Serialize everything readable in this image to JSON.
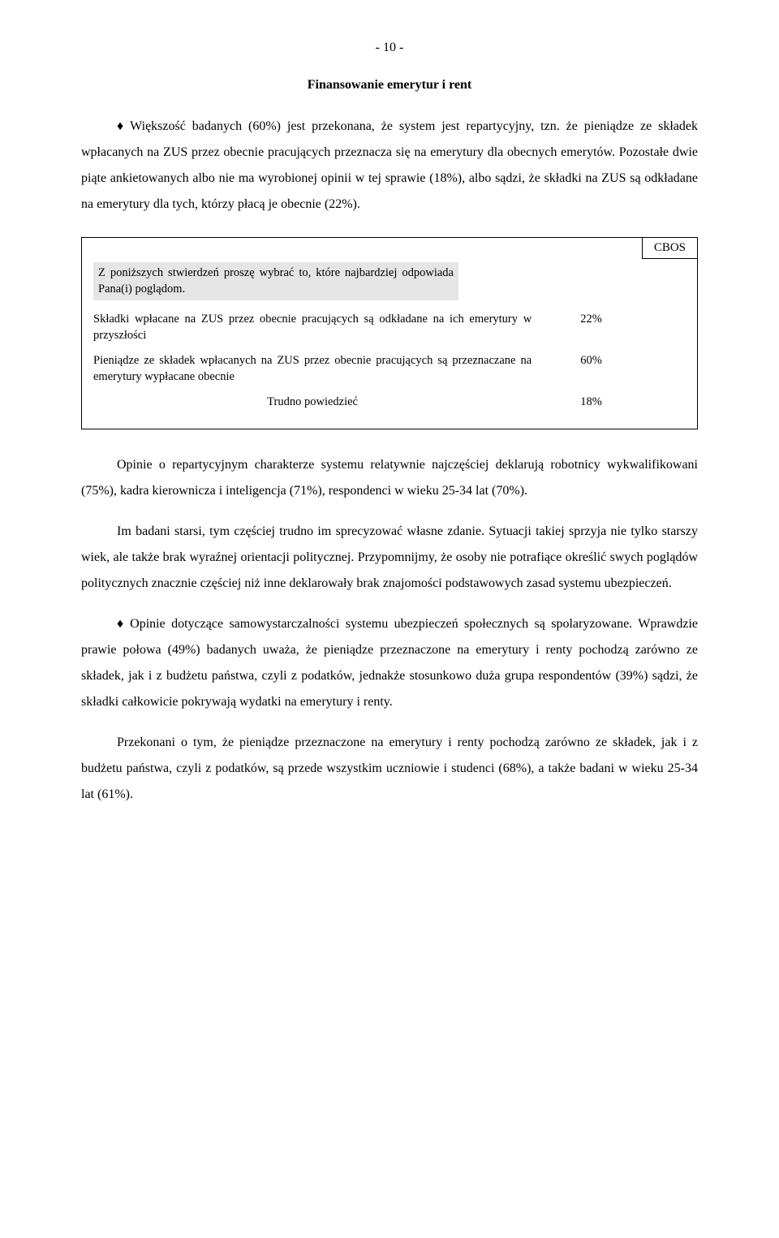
{
  "page_number": "- 10 -",
  "section_title": "Finansowanie emerytur i rent",
  "paragraphs": {
    "p1": "Większość badanych (60%) jest przekonana, że system jest repartycyjny, tzn. że pieniądze ze składek wpłacanych na ZUS przez obecnie pracujących przeznacza się na emerytury dla obecnych emerytów. Pozostałe dwie piąte ankietowanych albo nie ma wyrobionej opinii w tej sprawie (18%), albo sądzi, że składki na ZUS są odkładane na emerytury dla tych, którzy płacą je obecnie (22%).",
    "p2": "Opinie o repartycyjnym charakterze systemu relatywnie najczęściej deklarują robotnicy wykwalifikowani (75%), kadra kierownicza i inteligencja (71%), respondenci w wieku 25-34 lat (70%).",
    "p3": "Im badani starsi, tym częściej trudno im sprecyzować własne zdanie. Sytuacji takiej sprzyja nie tylko starszy wiek, ale także brak wyraźnej orientacji politycznej. Przypomnijmy, że osoby nie potrafiące określić swych poglądów politycznych znacznie częściej niż inne deklarowały brak znajomości podstawowych zasad systemu ubezpieczeń.",
    "p4": "Opinie dotyczące samowystarczalności systemu ubezpieczeń społecznych są spolaryzowane. Wprawdzie prawie połowa (49%) badanych uważa, że pieniądze przeznaczone na emerytury i renty pochodzą zarówno ze składek, jak i z budżetu państwa, czyli z podatków, jednakże stosunkowo duża grupa respondentów (39%)  sądzi, że składki całkowicie pokrywają wydatki na emerytury i renty.",
    "p5": "Przekonani o tym, że pieniądze przeznaczone na emerytury i renty pochodzą zarówno ze składek, jak i z budżetu państwa, czyli z podatków, są przede wszystkim uczniowie i studenci (68%), a także badani w wieku 25-34 lat (61%)."
  },
  "survey": {
    "tag": "CBOS",
    "question": "Z poniższych stwierdzeń proszę wybrać to, które najbardziej odpowiada Pana(i) poglądom.",
    "answers": [
      {
        "text": "Składki wpłacane na ZUS przez obecnie pracujących są odkładane na ich emerytury w przyszłości",
        "pct": "22%"
      },
      {
        "text": "Pieniądze ze składek wpłacanych na ZUS przez obecnie pracujących są przeznaczane na emerytury wypłacane obecnie",
        "pct": "60%"
      },
      {
        "text": "Trudno powiedzieć",
        "pct": "18%"
      }
    ]
  },
  "style": {
    "body_font_size_pt": 12,
    "line_height_ratio": 2.0,
    "text_color": "#000000",
    "background_color": "#ffffff",
    "question_bg": "#e5e5e5",
    "box_border_color": "#000000",
    "bullet_glyph": "♦"
  }
}
